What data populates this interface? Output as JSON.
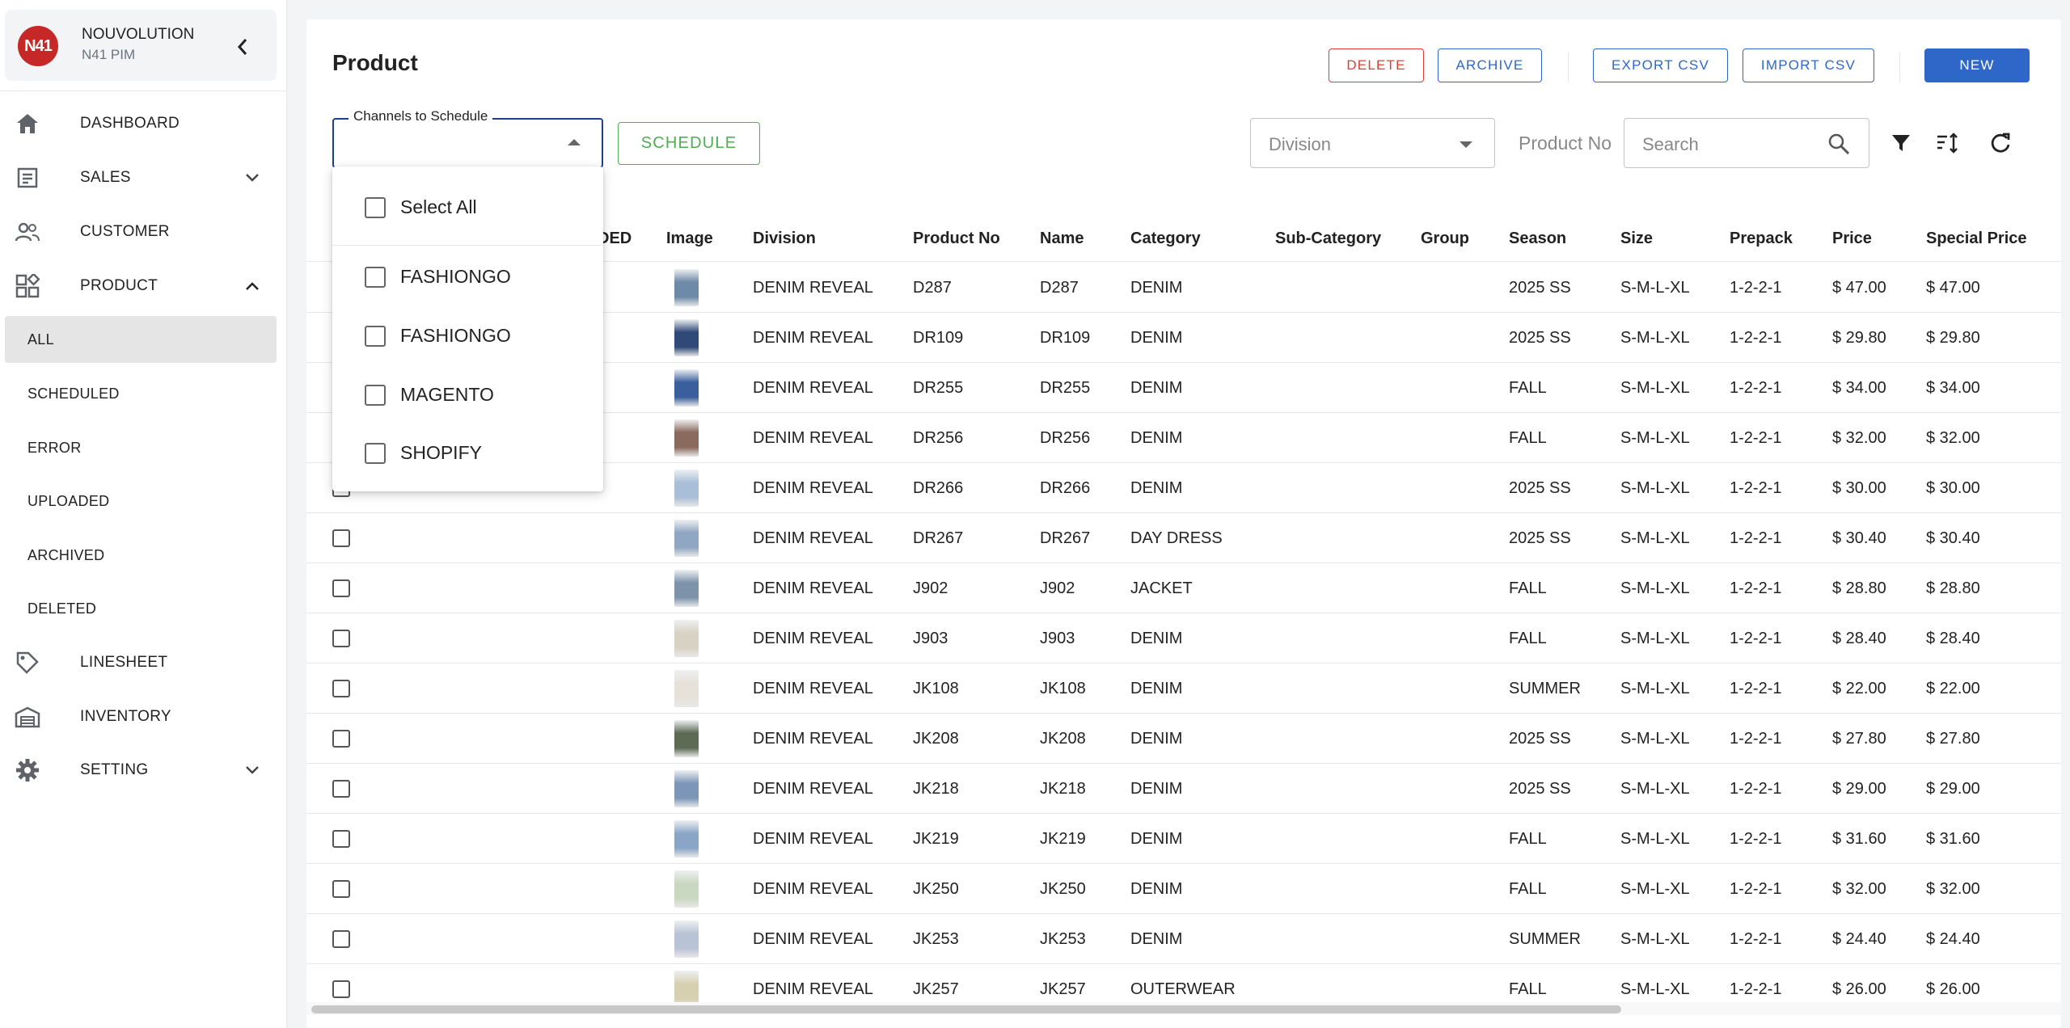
{
  "brand": {
    "logo_text": "N41",
    "name": "NOUVOLUTION",
    "subtitle": "N41 PIM"
  },
  "nav": {
    "dashboard": "DASHBOARD",
    "sales": "SALES",
    "customer": "CUSTOMER",
    "product": "PRODUCT",
    "linesheet": "LINESHEET",
    "inventory": "INVENTORY",
    "setting": "SETTING"
  },
  "product_sub": [
    "ALL",
    "SCHEDULED",
    "ERROR",
    "UPLOADED",
    "ARCHIVED",
    "DELETED"
  ],
  "page": {
    "title": "Product"
  },
  "toolbar": {
    "delete": "DELETE",
    "archive": "ARCHIVE",
    "export_csv": "EXPORT CSV",
    "import_csv": "IMPORT CSV",
    "new": "NEW",
    "schedule": "SCHEDULE"
  },
  "filters": {
    "channels_label": "Channels to Schedule",
    "division_placeholder": "Division",
    "product_no_label": "Product No",
    "search_placeholder": "Search"
  },
  "channels_dropdown": {
    "select_all": "Select All",
    "options": [
      "FASHIONGO",
      "FASHIONGO",
      "MAGENTO",
      "SHOPIFY"
    ]
  },
  "table": {
    "partial_header": "DED",
    "columns": [
      "Image",
      "Division",
      "Product No",
      "Name",
      "Category",
      "Sub-Category",
      "Group",
      "Season",
      "Size",
      "Prepack",
      "Price",
      "Special Price"
    ],
    "rows": [
      {
        "division": "DENIM REVEAL",
        "product_no": "D287",
        "name": "D287",
        "category": "DENIM",
        "season": "2025 SS",
        "size": "S-M-L-XL",
        "prepack": "1-2-2-1",
        "price": "$ 47.00",
        "special_price": "$ 47.00"
      },
      {
        "division": "DENIM REVEAL",
        "product_no": "DR109",
        "name": "DR109",
        "category": "DENIM",
        "season": "2025 SS",
        "size": "S-M-L-XL",
        "prepack": "1-2-2-1",
        "price": "$ 29.80",
        "special_price": "$ 29.80"
      },
      {
        "division": "DENIM REVEAL",
        "product_no": "DR255",
        "name": "DR255",
        "category": "DENIM",
        "season": "FALL",
        "size": "S-M-L-XL",
        "prepack": "1-2-2-1",
        "price": "$ 34.00",
        "special_price": "$ 34.00"
      },
      {
        "division": "DENIM REVEAL",
        "product_no": "DR256",
        "name": "DR256",
        "category": "DENIM",
        "season": "FALL",
        "size": "S-M-L-XL",
        "prepack": "1-2-2-1",
        "price": "$ 32.00",
        "special_price": "$ 32.00"
      },
      {
        "division": "DENIM REVEAL",
        "product_no": "DR266",
        "name": "DR266",
        "category": "DENIM",
        "season": "2025 SS",
        "size": "S-M-L-XL",
        "prepack": "1-2-2-1",
        "price": "$ 30.00",
        "special_price": "$ 30.00"
      },
      {
        "division": "DENIM REVEAL",
        "product_no": "DR267",
        "name": "DR267",
        "category": "DAY DRESS",
        "season": "2025 SS",
        "size": "S-M-L-XL",
        "prepack": "1-2-2-1",
        "price": "$ 30.40",
        "special_price": "$ 30.40"
      },
      {
        "division": "DENIM REVEAL",
        "product_no": "J902",
        "name": "J902",
        "category": "JACKET",
        "season": "FALL",
        "size": "S-M-L-XL",
        "prepack": "1-2-2-1",
        "price": "$ 28.80",
        "special_price": "$ 28.80"
      },
      {
        "division": "DENIM REVEAL",
        "product_no": "J903",
        "name": "J903",
        "category": "DENIM",
        "season": "FALL",
        "size": "S-M-L-XL",
        "prepack": "1-2-2-1",
        "price": "$ 28.40",
        "special_price": "$ 28.40"
      },
      {
        "division": "DENIM REVEAL",
        "product_no": "JK108",
        "name": "JK108",
        "category": "DENIM",
        "season": "SUMMER",
        "size": "S-M-L-XL",
        "prepack": "1-2-2-1",
        "price": "$ 22.00",
        "special_price": "$ 22.00"
      },
      {
        "division": "DENIM REVEAL",
        "product_no": "JK208",
        "name": "JK208",
        "category": "DENIM",
        "season": "2025 SS",
        "size": "S-M-L-XL",
        "prepack": "1-2-2-1",
        "price": "$ 27.80",
        "special_price": "$ 27.80"
      },
      {
        "division": "DENIM REVEAL",
        "product_no": "JK218",
        "name": "JK218",
        "category": "DENIM",
        "season": "2025 SS",
        "size": "S-M-L-XL",
        "prepack": "1-2-2-1",
        "price": "$ 29.00",
        "special_price": "$ 29.00"
      },
      {
        "division": "DENIM REVEAL",
        "product_no": "JK219",
        "name": "JK219",
        "category": "DENIM",
        "season": "FALL",
        "size": "S-M-L-XL",
        "prepack": "1-2-2-1",
        "price": "$ 31.60",
        "special_price": "$ 31.60"
      },
      {
        "division": "DENIM REVEAL",
        "product_no": "JK250",
        "name": "JK250",
        "category": "DENIM",
        "season": "FALL",
        "size": "S-M-L-XL",
        "prepack": "1-2-2-1",
        "price": "$ 32.00",
        "special_price": "$ 32.00"
      },
      {
        "division": "DENIM REVEAL",
        "product_no": "JK253",
        "name": "JK253",
        "category": "DENIM",
        "season": "SUMMER",
        "size": "S-M-L-XL",
        "prepack": "1-2-2-1",
        "price": "$ 24.40",
        "special_price": "$ 24.40"
      },
      {
        "division": "DENIM REVEAL",
        "product_no": "JK257",
        "name": "JK257",
        "category": "OUTERWEAR",
        "season": "FALL",
        "size": "S-M-L-XL",
        "prepack": "1-2-2-1",
        "price": "$ 26.00",
        "special_price": "$ 26.00"
      }
    ]
  },
  "colors": {
    "accent": "#2f67c8",
    "danger": "#e53935",
    "success": "#4caf50",
    "logo": "#c62828"
  },
  "thumb_colors": [
    "#6d8aa8",
    "#2f4a78",
    "#3a5f9c",
    "#8a6a5c",
    "#a9bfd8",
    "#8fa7c2",
    "#7d93aa",
    "#d8d2c4",
    "#e6e2da",
    "#5d6b55",
    "#7c96b8",
    "#8aa6c6",
    "#c9d8c0",
    "#b9c3d6",
    "#d7d0b0"
  ]
}
